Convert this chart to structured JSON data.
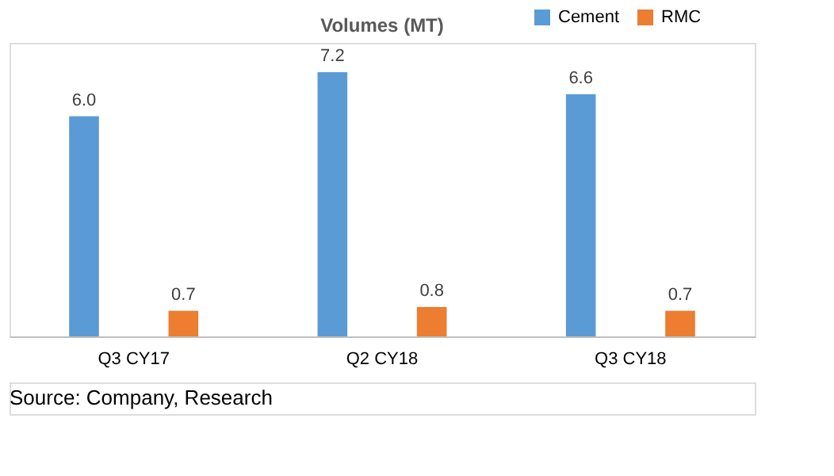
{
  "chart_data": {
    "type": "bar",
    "title": "Volumes (MT)",
    "categories": [
      "Q3 CY17",
      "Q2 CY18",
      "Q3 CY18"
    ],
    "series": [
      {
        "name": "Cement",
        "color": "#5b9bd5",
        "values": [
          6.0,
          7.2,
          6.6
        ],
        "value_labels": [
          "6.0",
          "7.2",
          "6.6"
        ]
      },
      {
        "name": "RMC",
        "color": "#ed7d31",
        "values": [
          0.7,
          0.8,
          0.7
        ],
        "value_labels": [
          "0.7",
          "0.8",
          "0.7"
        ]
      }
    ],
    "legend": "top right",
    "grid": false,
    "tick_labels": "x",
    "annotations": [
      "Source: Company, Research"
    ]
  }
}
